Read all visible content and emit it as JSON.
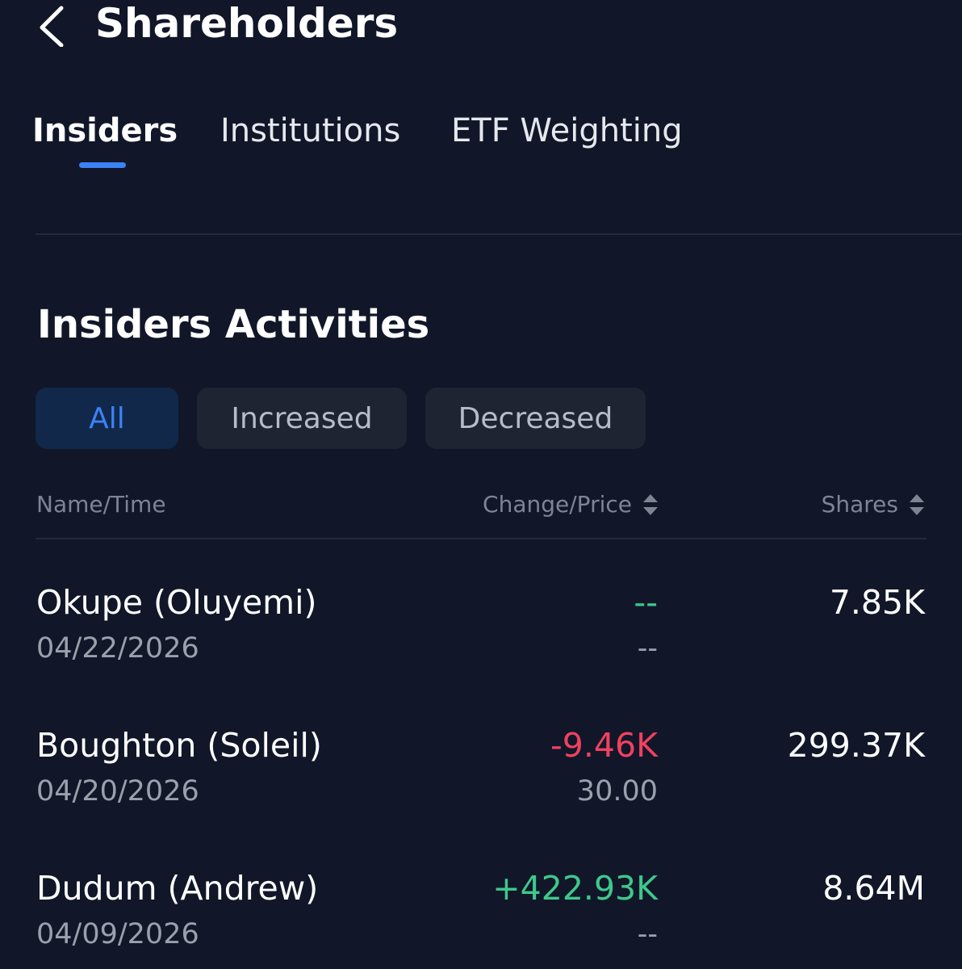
{
  "header": {
    "title": "Shareholders"
  },
  "tabs": [
    "Insiders",
    "Institutions",
    "ETF Weighting"
  ],
  "section": {
    "title": "Insiders Activities"
  },
  "filters": [
    "All",
    "Increased",
    "Decreased"
  ],
  "table": {
    "headers": [
      "Name/Time",
      "Change/Price",
      "Shares"
    ],
    "rows": [
      {
        "name": "Okupe (Oluyemi)",
        "date": "04/22/2026",
        "change": "--",
        "price": "--",
        "shares": "7.85K"
      },
      {
        "name": "Boughton (Soleil)",
        "date": "04/20/2026",
        "change": "-9.46K",
        "price": "30.00",
        "shares": "299.37K"
      },
      {
        "name": "Dudum (Andrew)",
        "date": "04/09/2026",
        "change": "+422.93K",
        "price": "--",
        "shares": "8.64M"
      }
    ]
  }
}
